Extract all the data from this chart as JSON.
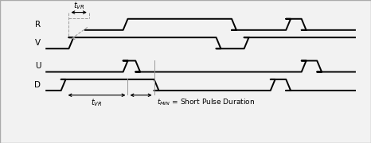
{
  "bg_color": "#f2f2f2",
  "line_color": "#000000",
  "gray_color": "#999999",
  "fig_width": 4.66,
  "fig_height": 1.8,
  "dpi": 100,
  "R_lo": 0,
  "R_hi": 1,
  "R_y": 8.5,
  "V_lo": 0,
  "V_hi": 1,
  "V_y": 6.5,
  "U_lo": 0,
  "U_hi": 1,
  "U_y": 4.0,
  "D_lo": 0,
  "D_hi": 1,
  "D_y": 2.0,
  "total_x": 20.0,
  "R_transitions": [
    2.5,
    5.0,
    5.8,
    12.0,
    12.0,
    15.5,
    15.5,
    16.5,
    16.5,
    20.0
  ],
  "R_values": [
    0,
    0,
    1,
    1,
    0,
    0,
    1,
    1,
    0,
    0
  ],
  "V_transitions": [
    0.0,
    1.5,
    1.5,
    2.5,
    2.5,
    11.0,
    11.0,
    12.8,
    12.8,
    20.0
  ],
  "V_values": [
    0,
    0,
    1,
    1,
    1,
    1,
    0,
    0,
    1,
    1
  ],
  "U_transitions": [
    0.0,
    5.0,
    5.0,
    5.8,
    5.8,
    7.0,
    7.0,
    16.5,
    16.5,
    17.5,
    17.5,
    20.0
  ],
  "U_values": [
    0,
    0,
    1,
    1,
    0,
    0,
    0,
    0,
    1,
    1,
    0,
    0
  ],
  "D_transitions": [
    0.0,
    1.0,
    1.0,
    2.0,
    2.0,
    7.0,
    7.0,
    14.5,
    14.5,
    15.5,
    15.5,
    18.0,
    18.0,
    20.0
  ],
  "D_values": [
    0,
    0,
    1,
    1,
    1,
    1,
    0,
    0,
    1,
    1,
    0,
    0,
    0,
    0
  ],
  "ylim": [
    -1.8,
    10.5
  ],
  "xlim": [
    -1.5,
    20.5
  ]
}
